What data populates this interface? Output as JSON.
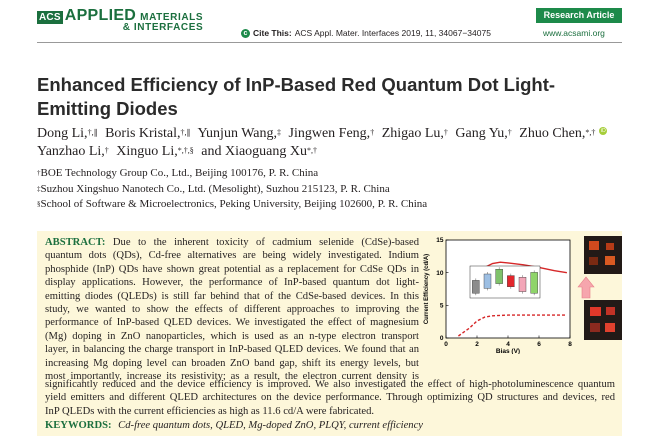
{
  "header": {
    "logo_acs": "ACS",
    "logo_applied": "APPLIED",
    "logo_materials": "MATERIALS",
    "logo_interfaces": "& INTERFACES",
    "badge": "Research Article",
    "cite_label": "Cite This:",
    "cite_ref": "ACS Appl. Mater. Interfaces 2019, 11, 34067−34075",
    "url": "www.acsami.org"
  },
  "title": "Enhanced Efficiency of InP-Based Red Quantum Dot Light-Emitting Diodes",
  "authors": [
    {
      "name": "Dong Li,",
      "sup": "†,∥"
    },
    {
      "name": "Boris Kristal,",
      "sup": "†,∥"
    },
    {
      "name": "Yunjun Wang,",
      "sup": "‡"
    },
    {
      "name": "Jingwen Feng,",
      "sup": "†"
    },
    {
      "name": "Zhigao Lu,",
      "sup": "†"
    },
    {
      "name": "Gang Yu,",
      "sup": "†"
    },
    {
      "name": "Zhuo Chen,",
      "sup": "*,†"
    },
    {
      "name": "Yanzhao Li,",
      "sup": "†"
    },
    {
      "name": "Xinguo Li,",
      "sup": "*,†,§"
    },
    {
      "name": "and Xiaoguang Xu",
      "sup": "*,†"
    }
  ],
  "affiliations": [
    {
      "mark": "†",
      "text": "BOE Technology Group Co., Ltd., Beijing 100176, P. R. China"
    },
    {
      "mark": "‡",
      "text": "Suzhou Xingshuo Nanotech Co., Ltd. (Mesolight), Suzhou 215123, P. R. China"
    },
    {
      "mark": "§",
      "text": "School of Software & Microelectronics, Peking University, Beijing 102600, P. R. China"
    }
  ],
  "abstract": {
    "label": "ABSTRACT:",
    "narrow_lines": [
      "Due to the inherent toxicity of cadmium selenide (CdSe)-based",
      "quantum dots (QDs), Cd-free alternatives are being widely investigated. Indium",
      "phosphide (InP) QDs have shown great potential as a replacement for CdSe QDs in",
      "display applications. However, the performance of InP-based quantum dot light-",
      "emitting diodes (QLEDs) is still far behind that of the CdSe-based devices. In this",
      "study, we wanted to show the effects of different approaches to improving the",
      "performance of InP-based QLED devices. We investigated the effect of magnesium",
      "(Mg) doping in ZnO nanoparticles, which is used as an n-type electron transport",
      "layer, in balancing the charge transport in InP-based QLED devices. We found that an",
      "increasing Mg doping level can broaden ZnO band gap, shift its energy levels, but",
      "most importantly, increase its resistivity; as a result, the electron current density is"
    ],
    "wide_lines": [
      "significantly reduced and the device efficiency is improved. We also investigated the effect of high-photoluminescence quantum",
      "yield emitters and different QLED architectures on the device performance. Through optimizing QD structures and devices, red",
      "InP QLEDs with the current efficiencies as high as 11.6 cd/A were fabricated."
    ]
  },
  "keywords": {
    "label": "KEYWORDS:",
    "list": "Cd-free quantum dots, QLED, Mg-doped ZnO, PLQY, current efficiency"
  },
  "chart_data": {
    "type": "line",
    "xlabel": "Bias (V)",
    "ylabel": "Current Efficiency (cd/A)",
    "xlim": [
      0,
      8
    ],
    "ylim": [
      0,
      15
    ],
    "xticks": [
      0,
      2,
      4,
      6,
      8
    ],
    "yticks": [
      0,
      5,
      10,
      15
    ],
    "series": [
      {
        "style": "solid",
        "color": "#d62728",
        "x": [
          2.2,
          2.5,
          3,
          3.5,
          4,
          5,
          6,
          7,
          7.8
        ],
        "y": [
          9,
          10.8,
          11.4,
          11.6,
          11.5,
          11.2,
          10.8,
          10.3,
          10.0
        ]
      },
      {
        "style": "dashed",
        "color": "#d62728",
        "x": [
          0.8,
          1.5,
          2,
          2.5,
          3,
          4,
          5,
          6,
          7,
          7.8
        ],
        "y": [
          0.3,
          1.5,
          2.6,
          3.2,
          3.4,
          3.5,
          3.5,
          3.5,
          3.5,
          3.5
        ]
      }
    ],
    "inset_bars": [
      {
        "color": "#8c8c8c",
        "low": 0.15,
        "high": 0.55
      },
      {
        "color": "#9dbfe3",
        "low": 0.3,
        "high": 0.75
      },
      {
        "color": "#7fc26b",
        "low": 0.45,
        "high": 0.9
      },
      {
        "color": "#e2262c",
        "low": 0.35,
        "high": 0.7
      },
      {
        "color": "#f3a6b8",
        "low": 0.2,
        "high": 0.65
      },
      {
        "color": "#8fd46a",
        "low": 0.15,
        "high": 0.8
      }
    ]
  }
}
